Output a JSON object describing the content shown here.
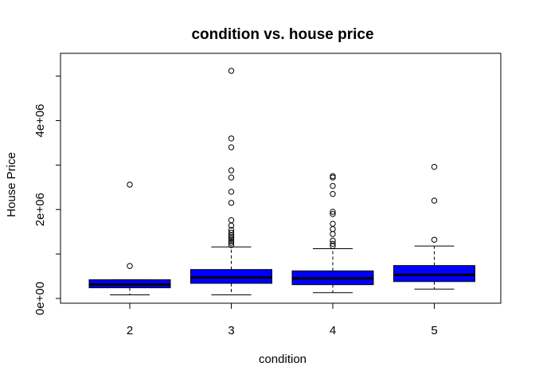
{
  "chart_data": {
    "type": "boxplot",
    "title": "condition vs. house price",
    "xlabel": "condition",
    "ylabel": "House Price",
    "categories": [
      "2",
      "3",
      "4",
      "5"
    ],
    "ylim": [
      -100000,
      5300000
    ],
    "yticks": [
      0,
      2000000,
      4000000
    ],
    "ytick_labels": [
      "0e+00",
      "2e+06",
      "4e+06"
    ],
    "box_fill": "#0000FF",
    "boxes": [
      {
        "category": "2",
        "whisker_low": 80000,
        "q1": 240000,
        "median": 310000,
        "q3": 420000,
        "whisker_high": 420000,
        "outliers": [
          730000,
          2560000
        ]
      },
      {
        "category": "3",
        "whisker_low": 80000,
        "q1": 340000,
        "median": 470000,
        "q3": 650000,
        "whisker_high": 1160000,
        "outliers": [
          1200000,
          1250000,
          1290000,
          1340000,
          1380000,
          1420000,
          1480000,
          1540000,
          1640000,
          1760000,
          2150000,
          2400000,
          2720000,
          2880000,
          3400000,
          3600000,
          5120000
        ]
      },
      {
        "category": "4",
        "whisker_low": 130000,
        "q1": 310000,
        "median": 450000,
        "q3": 620000,
        "whisker_high": 1120000,
        "outliers": [
          1180000,
          1230000,
          1300000,
          1450000,
          1560000,
          1680000,
          1900000,
          1950000,
          2350000,
          2530000,
          2720000,
          2750000
        ]
      },
      {
        "category": "5",
        "whisker_low": 210000,
        "q1": 380000,
        "median": 530000,
        "q3": 740000,
        "whisker_high": 1180000,
        "outliers": [
          1320000,
          2200000,
          2960000
        ]
      }
    ]
  }
}
